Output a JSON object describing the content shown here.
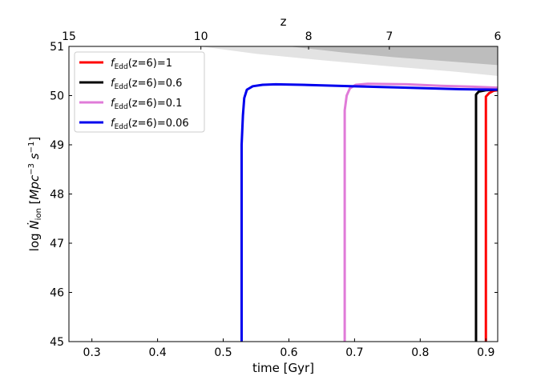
{
  "chart_data": {
    "type": "line",
    "xlabel": "time [Gyr]",
    "ylabel": "log Ṅion [Mpc⁻³ s⁻¹]",
    "top_xlabel": "z",
    "xlim": [
      0.265,
      0.918
    ],
    "ylim": [
      45,
      51
    ],
    "xticks": [
      0.3,
      0.4,
      0.5,
      0.6,
      0.7,
      0.8,
      0.9
    ],
    "xtick_labels": [
      "0.3",
      "0.4",
      "0.5",
      "0.6",
      "0.7",
      "0.8",
      "0.9"
    ],
    "yticks": [
      45,
      46,
      47,
      48,
      49,
      50,
      51
    ],
    "ytick_labels": [
      "45",
      "46",
      "47",
      "48",
      "49",
      "50",
      "51"
    ],
    "top_ticks": [
      {
        "label": "15",
        "time": 0.265
      },
      {
        "label": "10",
        "time": 0.466
      },
      {
        "label": "8",
        "time": 0.63
      },
      {
        "label": "7",
        "time": 0.753
      },
      {
        "label": "6",
        "time": 0.918
      }
    ],
    "grid": false,
    "legend_position": "upper-left",
    "series": [
      {
        "name": "fEdd(z=6)=1",
        "color": "#ff0000",
        "points": [
          [
            0.9,
            45.0
          ],
          [
            0.9,
            49.98
          ],
          [
            0.905,
            50.05
          ],
          [
            0.912,
            50.1
          ],
          [
            0.918,
            50.11
          ]
        ]
      },
      {
        "name": "fEdd(z=6)=0.6",
        "color": "#000000",
        "points": [
          [
            0.885,
            45.0
          ],
          [
            0.885,
            50.02
          ],
          [
            0.889,
            50.08
          ],
          [
            0.9,
            50.11
          ],
          [
            0.918,
            50.12
          ]
        ]
      },
      {
        "name": "fEdd(z=6)=0.1",
        "color": "#e07bd8",
        "points": [
          [
            0.685,
            45.0
          ],
          [
            0.685,
            49.7
          ],
          [
            0.688,
            50.0
          ],
          [
            0.693,
            50.15
          ],
          [
            0.702,
            50.22
          ],
          [
            0.72,
            50.24
          ],
          [
            0.78,
            50.23
          ],
          [
            0.83,
            50.2
          ],
          [
            0.88,
            50.18
          ],
          [
            0.918,
            50.16
          ]
        ]
      },
      {
        "name": "fEdd(z=6)=0.06",
        "color": "#0000ee",
        "points": [
          [
            0.528,
            45.0
          ],
          [
            0.528,
            49.0
          ],
          [
            0.53,
            49.6
          ],
          [
            0.532,
            49.95
          ],
          [
            0.536,
            50.12
          ],
          [
            0.545,
            50.19
          ],
          [
            0.56,
            50.22
          ],
          [
            0.58,
            50.23
          ],
          [
            0.62,
            50.22
          ],
          [
            0.7,
            50.19
          ],
          [
            0.78,
            50.16
          ],
          [
            0.86,
            50.13
          ],
          [
            0.918,
            50.12
          ]
        ]
      }
    ],
    "shaded_regions": [
      {
        "color": "#e3e3e3",
        "upper": [
          [
            0.466,
            51.0
          ],
          [
            0.918,
            51.0
          ]
        ],
        "lower": [
          [
            0.466,
            51.0
          ],
          [
            0.55,
            50.85
          ],
          [
            0.65,
            50.72
          ],
          [
            0.75,
            50.6
          ],
          [
            0.85,
            50.49
          ],
          [
            0.918,
            50.4
          ]
        ]
      },
      {
        "color": "#bdbdbd",
        "upper": [
          [
            0.6,
            51.0
          ],
          [
            0.918,
            51.0
          ]
        ],
        "lower": [
          [
            0.6,
            51.0
          ],
          [
            0.68,
            50.88
          ],
          [
            0.76,
            50.78
          ],
          [
            0.84,
            50.7
          ],
          [
            0.918,
            50.62
          ]
        ]
      }
    ]
  }
}
